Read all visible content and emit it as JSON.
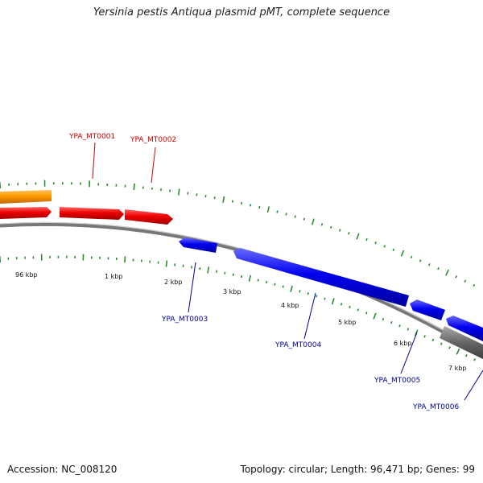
{
  "title": "Yersinia pestis Antiqua plasmid pMT, complete sequence",
  "footer": {
    "accession": "Accession: NC_008120",
    "summary": "Topology: circular; Length: 96,471 bp; Genes: 99"
  },
  "colors": {
    "forward_gene": "#dd0000",
    "reverse_gene": "#0000cc",
    "other_feature": "#ff9900",
    "gray_feature": "#6a6a6a",
    "backbone": "#888888",
    "tick": "#2e8b2e",
    "red_label": "#cc0000",
    "blue_label": "#000099"
  },
  "scale_labels": [
    "96 kbp",
    "1 kbp",
    "2 kbp",
    "3 kbp",
    "4 kbp",
    "5 kbp",
    "6 kbp",
    "7 kbp"
  ],
  "gene_labels": {
    "g1": "YPA_MT0001",
    "g2": "YPA_MT0002",
    "g3": "YPA_MT0003",
    "g4": "YPA_MT0004",
    "g5": "YPA_MT0005",
    "g6": "YPA_MT0006"
  }
}
